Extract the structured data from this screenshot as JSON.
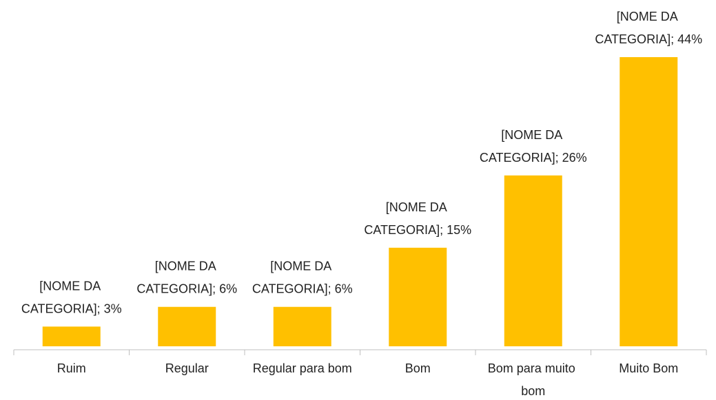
{
  "chart_data": {
    "type": "bar",
    "categories": [
      "Ruim",
      "Regular",
      "Regular para bom",
      "Bom",
      "Bom para muito bom",
      "Muito Bom"
    ],
    "values": [
      3,
      6,
      6,
      15,
      26,
      44
    ],
    "value_labels": [
      "[NOME DA CATEGORIA]; 3%",
      "[NOME DA CATEGORIA]; 6%",
      "[NOME DA CATEGORIA]; 6%",
      "[NOME DA CATEGORIA]; 15%",
      "[NOME DA CATEGORIA]; 26%",
      "[NOME DA CATEGORIA]; 44%"
    ],
    "color": "#ffc000",
    "grid": false
  }
}
